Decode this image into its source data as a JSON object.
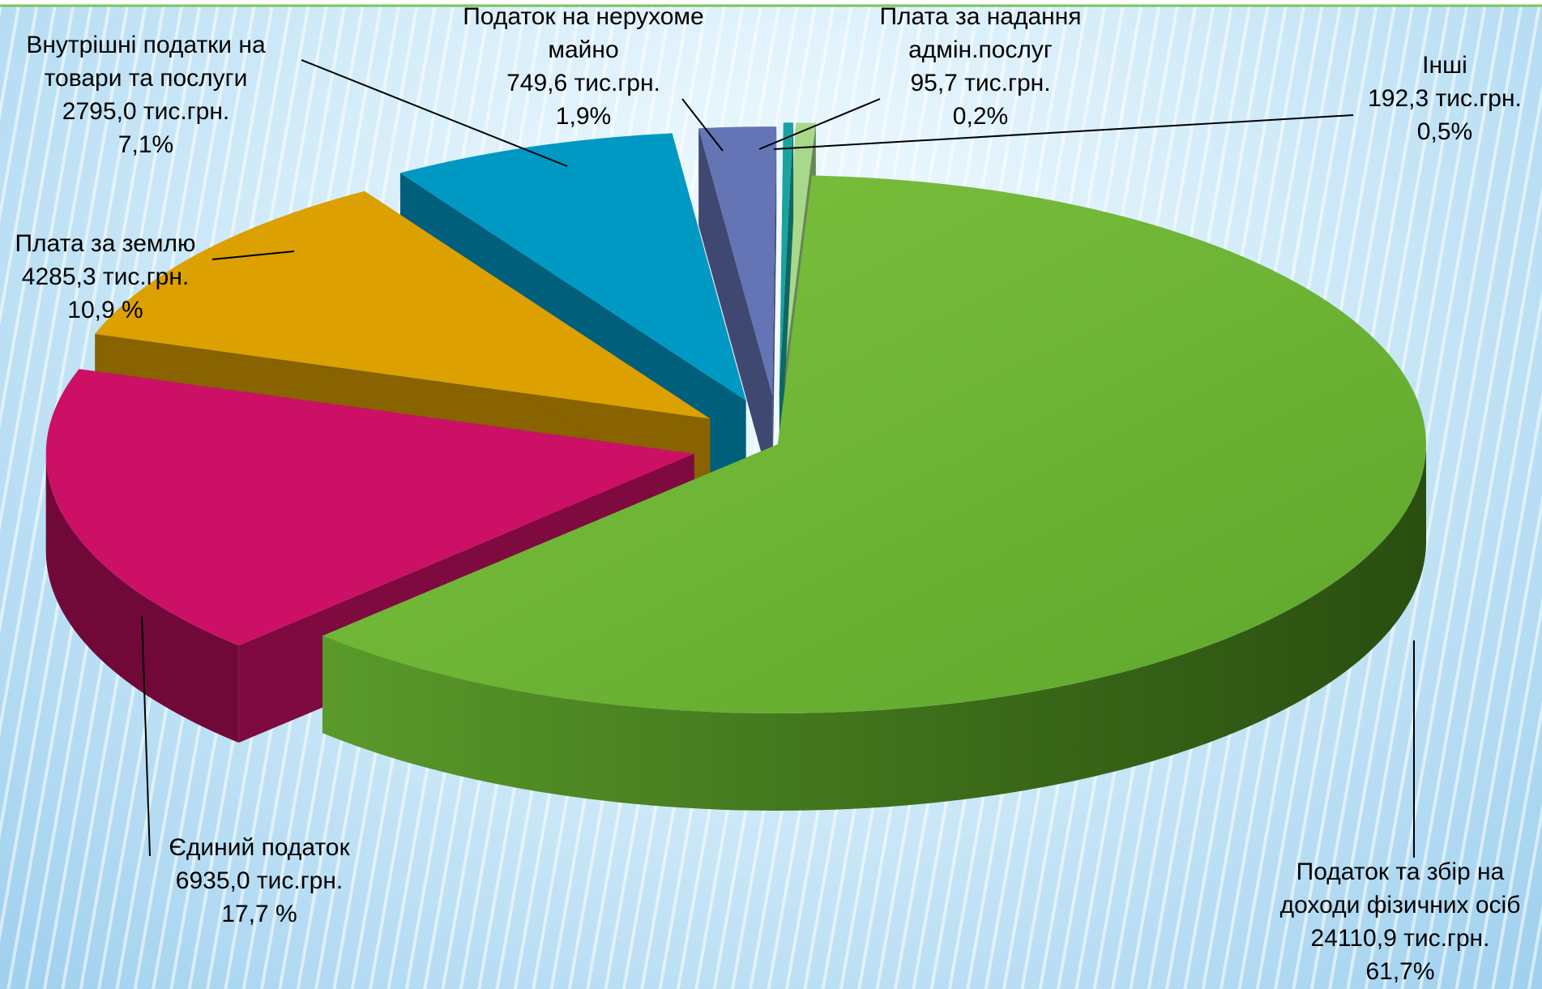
{
  "chart_data": {
    "type": "pie",
    "title": "",
    "unit": "тис.грн.",
    "legend": "none",
    "slices": [
      {
        "name": "Податок та збір на доходи фізичних осіб",
        "label_lines": [
          "Податок та збір на",
          "доходи фізичних осіб",
          "24110,9  тис.грн.",
          "61,7%"
        ],
        "value": 24110.9,
        "percent": 61.7,
        "color": "#6fb535"
      },
      {
        "name": "Єдиний податок",
        "label_lines": [
          "Єдиний податок",
          "6935,0 тис.грн.",
          "17,7 %"
        ],
        "value": 6935.0,
        "percent": 17.7,
        "color": "#cc1066"
      },
      {
        "name": "Плата за землю",
        "label_lines": [
          "Плата за землю",
          "4285,3 тис.грн.",
          "10,9 %"
        ],
        "value": 4285.3,
        "percent": 10.9,
        "color": "#dca000"
      },
      {
        "name": "Внутрішні податки на товари та послуги",
        "label_lines": [
          "Внутрішні податки на",
          "товари та послуги",
          "2795,0 тис.грн.",
          "7,1%"
        ],
        "value": 2795.0,
        "percent": 7.1,
        "color": "#0099c4"
      },
      {
        "name": "Податок на нерухоме майно",
        "label_lines": [
          "Податок на нерухоме",
          "майно",
          "749,6 тис.грн.",
          "1,9%"
        ],
        "value": 749.6,
        "percent": 1.9,
        "color": "#6474b4"
      },
      {
        "name": "Плата за надання адмін.послуг",
        "label_lines": [
          "Плата за надання",
          "адмін.послуг",
          "95,7 тис.грн.",
          "0,2%"
        ],
        "value": 95.7,
        "percent": 0.2,
        "color": "#19a4a0"
      },
      {
        "name": "Інші",
        "label_lines": [
          "Інші",
          "192,3 тис.грн.",
          "0,5%"
        ],
        "value": 192.3,
        "percent": 0.5,
        "color": "#a8d88a"
      }
    ]
  }
}
